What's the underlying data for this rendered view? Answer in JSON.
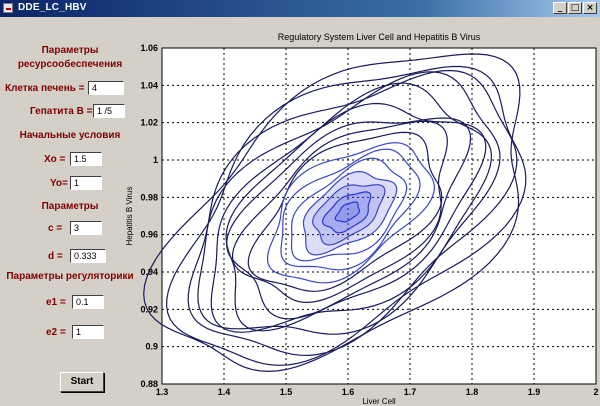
{
  "window": {
    "title": "DDE_LC_HBV",
    "min_glyph": "_",
    "max_glyph": "□",
    "close_glyph": "×"
  },
  "panel": {
    "resource_header_1": "Параметры",
    "resource_header_2": "ресурсообеспечения",
    "liver_label": "Клетка печень =",
    "liver_value": "4",
    "hepatitis_label": "Гепатита В =",
    "hepatitis_value": "1 /5",
    "initial_header": "Начальные условия",
    "xo_label": "Xo =",
    "xo_value": "1.5",
    "yo_label": "Yo=",
    "yo_value": "1",
    "params_header": "Параметры",
    "c_label": "c =",
    "c_value": "3",
    "d_label": "d =",
    "d_value": "0.333",
    "reg_header": "Параметры регуляторики",
    "e1_label": "e1 =",
    "e1_value": "0.1",
    "e2_label": "e2 =",
    "e2_value": "1",
    "start_label": "Start"
  },
  "chart_data": {
    "type": "line",
    "title": "Regulatory System Liver Cell and Hepatitis B Virus",
    "xlabel": "Liver Cell",
    "ylabel": "Hepatitis B Virus",
    "xlim": [
      1.3,
      2.0
    ],
    "ylim": [
      0.88,
      1.06
    ],
    "xticks": [
      1.3,
      1.4,
      1.5,
      1.6,
      1.7,
      1.8,
      1.9,
      2.0
    ],
    "yticks": [
      0.88,
      0.9,
      0.92,
      0.94,
      0.96,
      0.98,
      1.0,
      1.02,
      1.04,
      1.06
    ],
    "grid": true,
    "series": [
      {
        "center": [
          1.6,
          0.972
        ],
        "extent": [
          0.28,
          0.085
        ],
        "tilt": 0.2
      }
    ],
    "colors": {
      "outer": "#1a1a5c",
      "inner": "#3b45c8",
      "core": "#2a35d0"
    }
  }
}
